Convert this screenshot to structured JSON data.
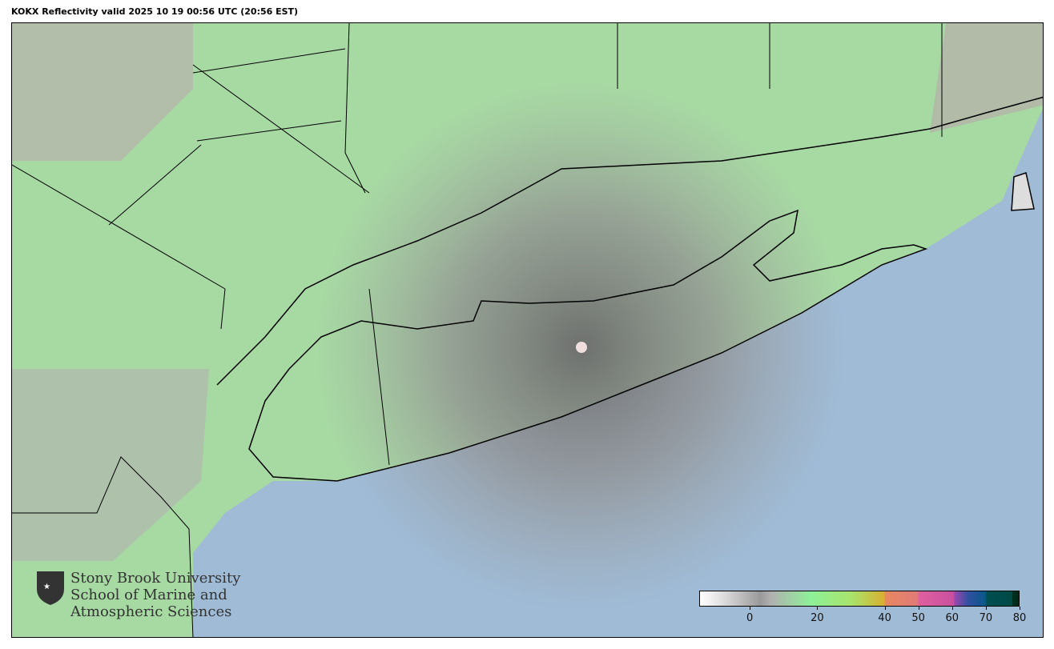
{
  "title": "KOKX Reflectivity valid 2025 10 19 00:56 UTC (20:56 EST)",
  "logo": {
    "line1": "Stony Brook University",
    "line2": "School of Marine and",
    "line3": "Atmospheric Sciences"
  },
  "colorbar": {
    "range": [
      -15,
      80
    ],
    "ticks": [
      "0",
      "20",
      "40",
      "50",
      "60",
      "70",
      "80"
    ],
    "tick_values": [
      0,
      20,
      40,
      50,
      60,
      70,
      80
    ],
    "colors": {
      "ocean": "#9fbbd6",
      "land_echo": "#9ee89a",
      "clutter": "#9a9a9a"
    }
  }
}
